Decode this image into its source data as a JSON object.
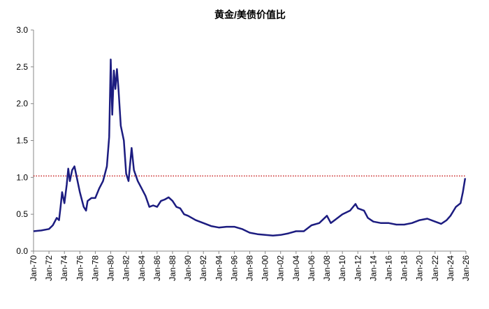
{
  "chart_data": {
    "type": "line",
    "title": "黄金/美债价值比",
    "x": [
      1970,
      1971,
      1972,
      1972.5,
      1973,
      1973.3,
      1973.5,
      1973.7,
      1974,
      1974.3,
      1974.5,
      1974.7,
      1975,
      1975.3,
      1975.5,
      1976,
      1976.5,
      1976.8,
      1977,
      1977.5,
      1978,
      1978.5,
      1979,
      1979.5,
      1979.8,
      1980,
      1980.2,
      1980.4,
      1980.6,
      1980.8,
      1981,
      1981.3,
      1981.7,
      1982,
      1982.3,
      1982.7,
      1983,
      1983.5,
      1984,
      1984.5,
      1985,
      1985.5,
      1986,
      1986.5,
      1987,
      1987.5,
      1988,
      1988.5,
      1989,
      1989.5,
      1990,
      1991,
      1992,
      1993,
      1994,
      1995,
      1996,
      1997,
      1998,
      1999,
      2000,
      2001,
      2002,
      2003,
      2004,
      2005,
      2006,
      2007,
      2008,
      2008.5,
      2009,
      2010,
      2011,
      2011.7,
      2012,
      2012.8,
      2013.3,
      2014,
      2015,
      2016,
      2017,
      2018,
      2019,
      2020,
      2021,
      2022,
      2022.8,
      2023.5,
      2024,
      2024.7,
      2025.3,
      2025.6,
      2025.9
    ],
    "series": [
      {
        "name": "黄金/美债价值比",
        "color": "#1c1c80",
        "values": [
          0.27,
          0.28,
          0.3,
          0.35,
          0.45,
          0.42,
          0.6,
          0.8,
          0.65,
          0.9,
          1.12,
          0.95,
          1.1,
          1.15,
          1.05,
          0.8,
          0.6,
          0.55,
          0.68,
          0.72,
          0.72,
          0.85,
          0.95,
          1.15,
          1.55,
          2.6,
          1.85,
          2.45,
          2.2,
          2.47,
          2.2,
          1.7,
          1.5,
          1.05,
          0.95,
          1.4,
          1.1,
          0.95,
          0.85,
          0.75,
          0.6,
          0.62,
          0.6,
          0.68,
          0.7,
          0.73,
          0.68,
          0.6,
          0.58,
          0.5,
          0.48,
          0.42,
          0.38,
          0.34,
          0.32,
          0.33,
          0.33,
          0.3,
          0.25,
          0.23,
          0.22,
          0.21,
          0.22,
          0.24,
          0.27,
          0.27,
          0.35,
          0.38,
          0.48,
          0.38,
          0.42,
          0.5,
          0.55,
          0.64,
          0.58,
          0.55,
          0.45,
          0.4,
          0.38,
          0.38,
          0.36,
          0.36,
          0.38,
          0.42,
          0.44,
          0.4,
          0.37,
          0.42,
          0.48,
          0.6,
          0.65,
          0.8,
          0.99
        ]
      }
    ],
    "xlim": [
      1970,
      2026
    ],
    "xticks": [
      {
        "value": 1970,
        "label": "Jan-70"
      },
      {
        "value": 1972,
        "label": "Jan-72"
      },
      {
        "value": 1974,
        "label": "Jan-74"
      },
      {
        "value": 1976,
        "label": "Jan-76"
      },
      {
        "value": 1978,
        "label": "Jan-78"
      },
      {
        "value": 1980,
        "label": "Jan-80"
      },
      {
        "value": 1982,
        "label": "Jan-82"
      },
      {
        "value": 1984,
        "label": "Jan-84"
      },
      {
        "value": 1986,
        "label": "Jan-86"
      },
      {
        "value": 1988,
        "label": "Jan-88"
      },
      {
        "value": 1990,
        "label": "Jan-90"
      },
      {
        "value": 1992,
        "label": "Jan-92"
      },
      {
        "value": 1994,
        "label": "Jan-94"
      },
      {
        "value": 1996,
        "label": "Jan-96"
      },
      {
        "value": 1998,
        "label": "Jan-98"
      },
      {
        "value": 2000,
        "label": "Jan-00"
      },
      {
        "value": 2002,
        "label": "Jan-02"
      },
      {
        "value": 2004,
        "label": "Jan-04"
      },
      {
        "value": 2006,
        "label": "Jan-06"
      },
      {
        "value": 2008,
        "label": "Jan-08"
      },
      {
        "value": 2010,
        "label": "Jan-10"
      },
      {
        "value": 2012,
        "label": "Jan-12"
      },
      {
        "value": 2014,
        "label": "Jan-14"
      },
      {
        "value": 2016,
        "label": "Jan-16"
      },
      {
        "value": 2018,
        "label": "Jan-18"
      },
      {
        "value": 2020,
        "label": "Jan-20"
      },
      {
        "value": 2022,
        "label": "Jan-22"
      },
      {
        "value": 2024,
        "label": "Jan-24"
      },
      {
        "value": 2026,
        "label": "Jan-26"
      }
    ],
    "ylim": [
      0,
      3
    ],
    "yticks": [
      {
        "value": 0,
        "label": "0.0"
      },
      0.5,
      {
        "value": 1,
        "label": "1.0"
      },
      1.5,
      {
        "value": 2,
        "label": "2.0"
      },
      2.5,
      {
        "value": 3,
        "label": "3.0"
      }
    ],
    "reference_line": {
      "value": 1.02,
      "color": "#c00000",
      "style": "dotted"
    },
    "grid": false
  }
}
